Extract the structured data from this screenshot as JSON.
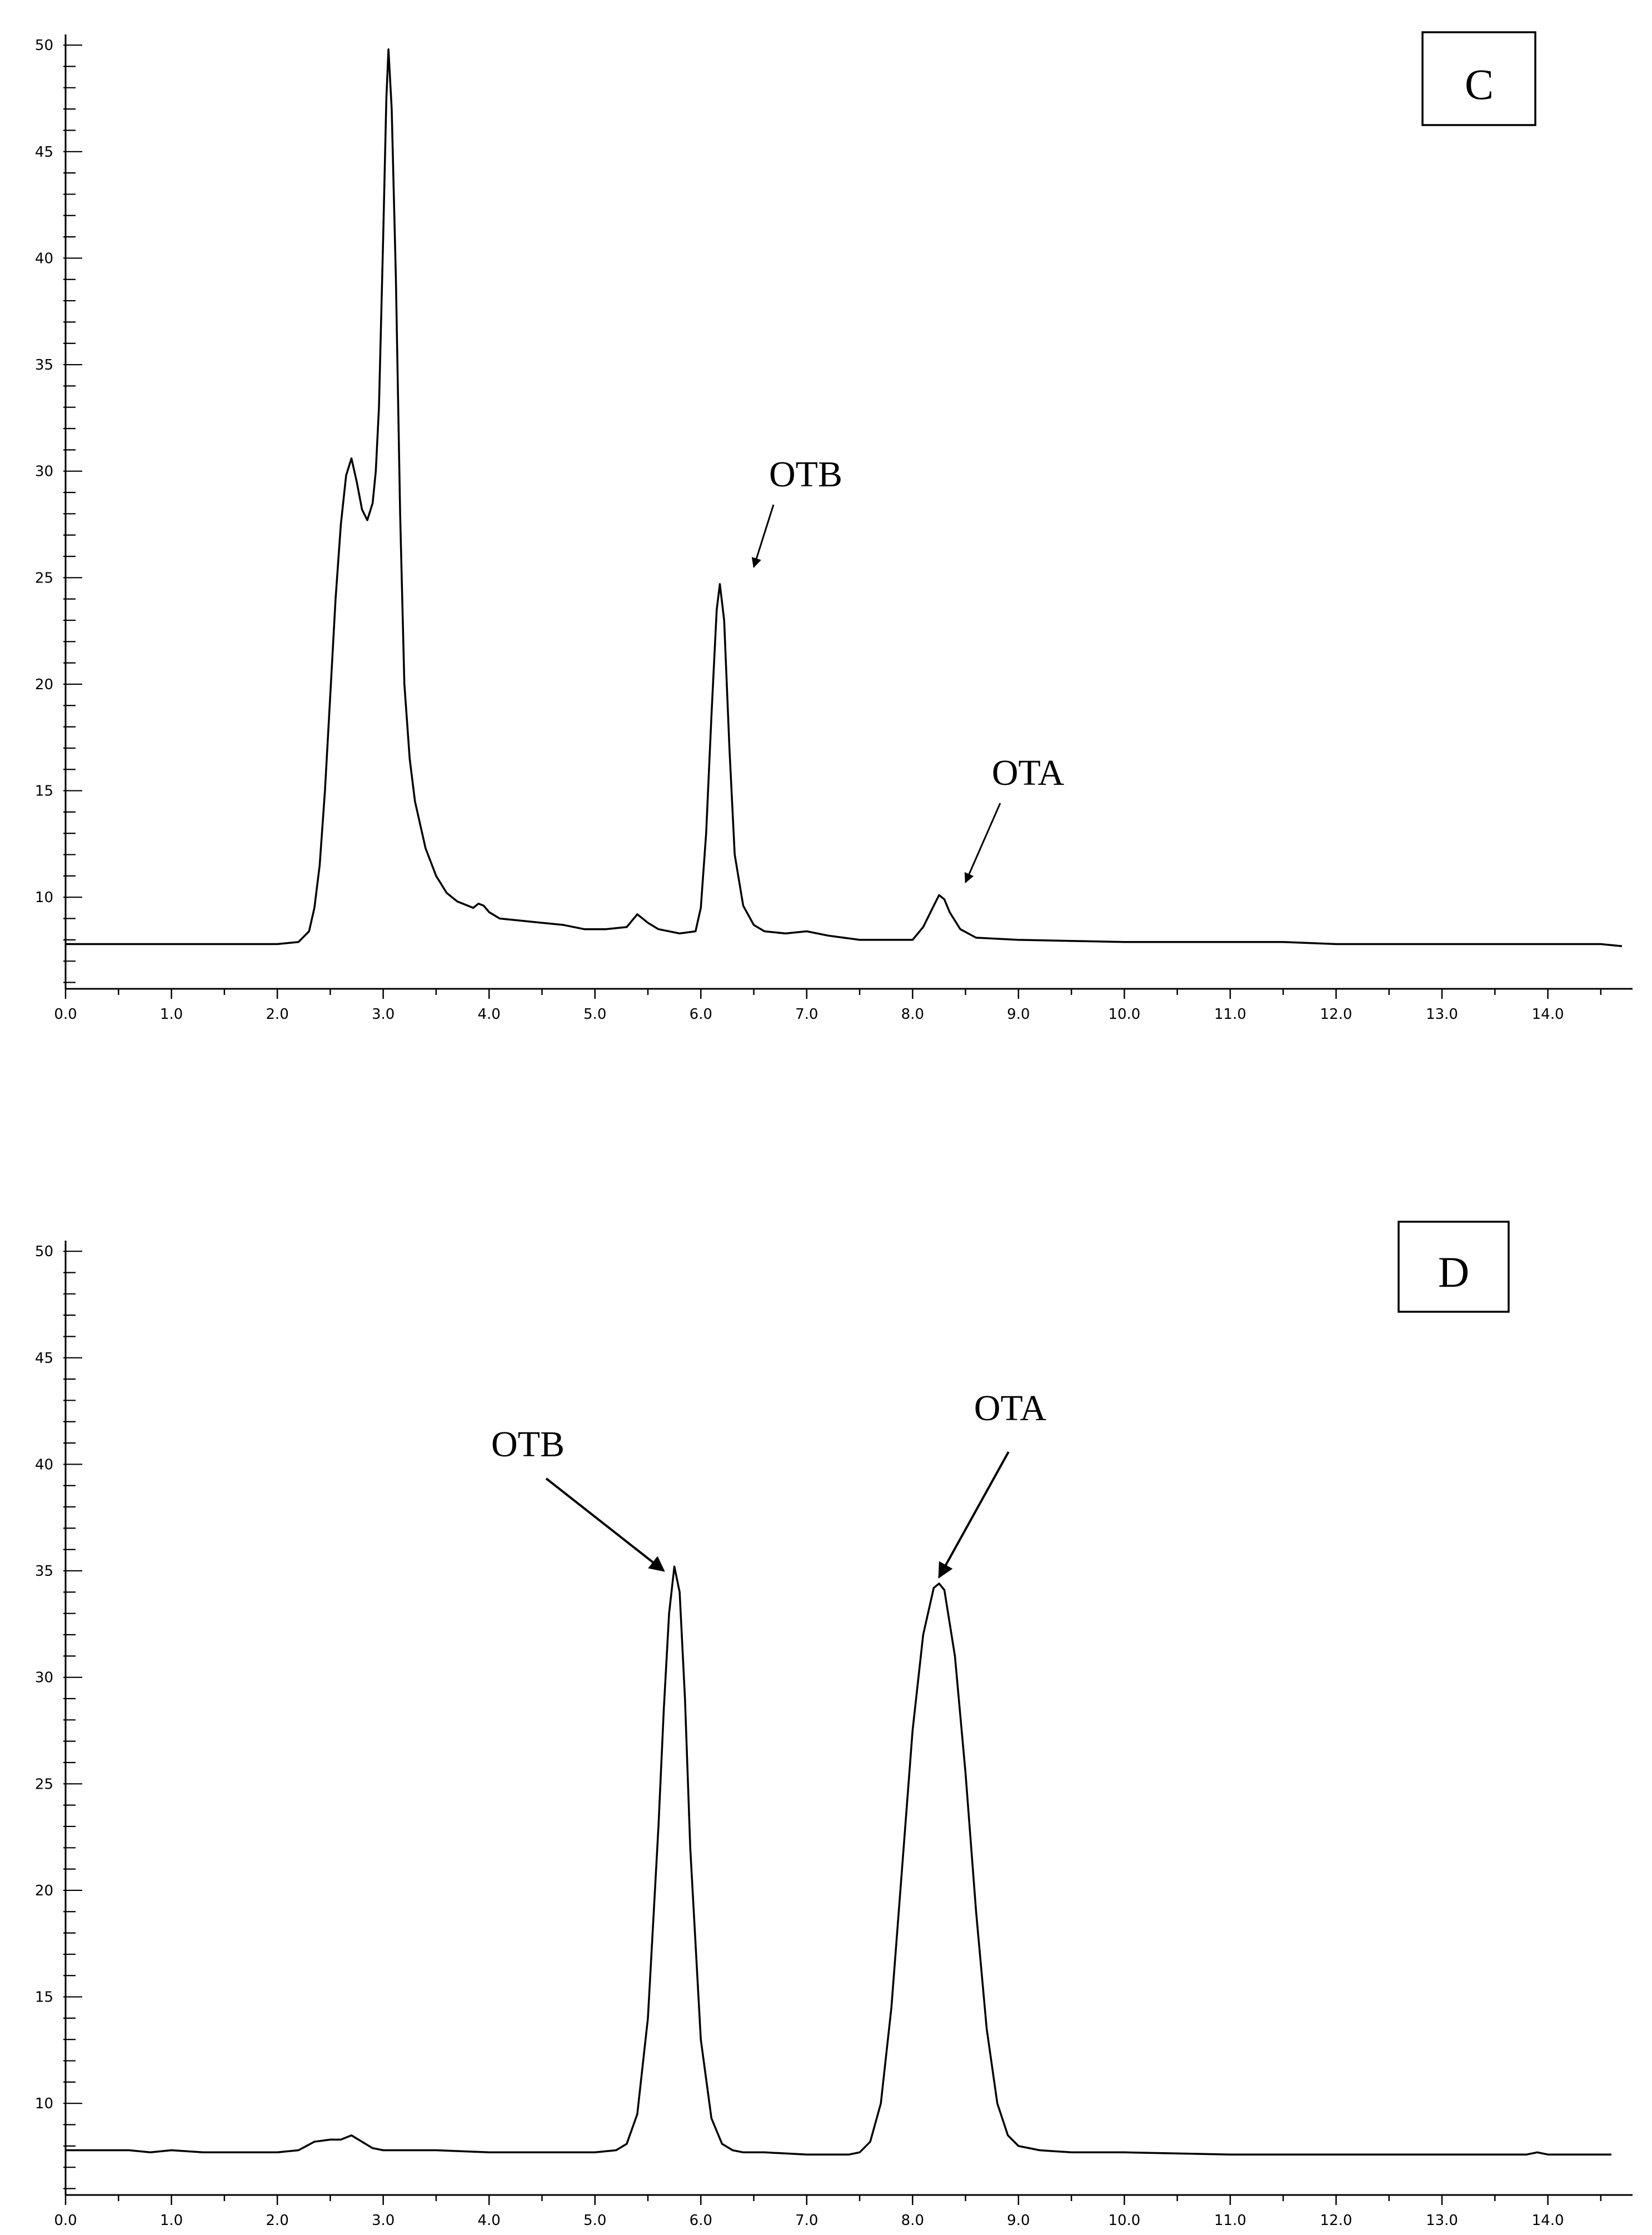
{
  "chart_data": [
    {
      "type": "line",
      "panel_label": "C",
      "xlim": [
        0,
        14.8
      ],
      "ylim": [
        5.7,
        50.5
      ],
      "x_ticks": [
        "0.0",
        "1.0",
        "2.0",
        "3.0",
        "4.0",
        "5.0",
        "6.0",
        "7.0",
        "8.0",
        "9.0",
        "10.0",
        "11.0",
        "12.0",
        "13.0",
        "14.0"
      ],
      "y_ticks": [
        "10",
        "15",
        "20",
        "25",
        "30",
        "35",
        "40",
        "45",
        "50"
      ],
      "grid": false,
      "series": [
        {
          "x": [
            0,
            2.0,
            2.2,
            2.3,
            2.35,
            2.4,
            2.45,
            2.5,
            2.55,
            2.6,
            2.65,
            2.7,
            2.75,
            2.8,
            2.85,
            2.9,
            2.93,
            2.96,
            3.0,
            3.03,
            3.05,
            3.08,
            3.12,
            3.16,
            3.2,
            3.25,
            3.3,
            3.4,
            3.5,
            3.6,
            3.7,
            3.8,
            3.85,
            3.9,
            3.95,
            4.0,
            4.1,
            4.3,
            4.5,
            4.7,
            4.9,
            5.1,
            5.3,
            5.35,
            5.4,
            5.45,
            5.5,
            5.6,
            5.8,
            5.95,
            6.0,
            6.05,
            6.1,
            6.15,
            6.18,
            6.22,
            6.27,
            6.32,
            6.4,
            6.5,
            6.6,
            6.8,
            7.0,
            7.2,
            7.5,
            8.0,
            8.1,
            8.2,
            8.25,
            8.3,
            8.35,
            8.45,
            8.6,
            9.0,
            10.0,
            11.5,
            12.0,
            13.0,
            14.0,
            14.5,
            14.7
          ],
          "y": [
            7.8,
            7.8,
            7.9,
            8.4,
            9.5,
            11.5,
            15.0,
            19.5,
            24.0,
            27.5,
            29.8,
            30.6,
            29.5,
            28.2,
            27.7,
            28.5,
            30.0,
            33.0,
            41.0,
            47.5,
            49.8,
            47.0,
            39.0,
            28.0,
            20.0,
            16.5,
            14.5,
            12.3,
            11.0,
            10.2,
            9.8,
            9.6,
            9.5,
            9.7,
            9.6,
            9.3,
            9.0,
            8.9,
            8.8,
            8.7,
            8.5,
            8.5,
            8.6,
            8.9,
            9.2,
            9.0,
            8.8,
            8.5,
            8.3,
            8.4,
            9.5,
            13.0,
            18.5,
            23.5,
            24.7,
            23.0,
            17.0,
            12.0,
            9.6,
            8.7,
            8.4,
            8.3,
            8.4,
            8.2,
            8.0,
            8.0,
            8.6,
            9.6,
            10.1,
            9.9,
            9.3,
            8.5,
            8.1,
            8.0,
            7.9,
            7.9,
            7.8,
            7.8,
            7.8,
            7.8,
            7.7
          ]
        }
      ],
      "annotations": [
        {
          "text": "OTB",
          "target": [
            6.5,
            25.5
          ]
        },
        {
          "text": "OTA",
          "target": [
            8.5,
            10.7
          ]
        }
      ]
    },
    {
      "type": "line",
      "panel_label": "D",
      "xlim": [
        0,
        14.8
      ],
      "ylim": [
        5.7,
        50.5
      ],
      "x_ticks": [
        "0.0",
        "1.0",
        "2.0",
        "3.0",
        "4.0",
        "5.0",
        "6.0",
        "7.0",
        "8.0",
        "9.0",
        "10.0",
        "11.0",
        "12.0",
        "13.0",
        "14.0"
      ],
      "y_ticks": [
        "10",
        "15",
        "20",
        "25",
        "30",
        "35",
        "40",
        "45",
        "50"
      ],
      "grid": false,
      "series": [
        {
          "x": [
            0,
            0.6,
            0.8,
            1.0,
            1.3,
            2.0,
            2.2,
            2.35,
            2.5,
            2.6,
            2.7,
            2.8,
            2.9,
            3.0,
            3.5,
            4.0,
            4.5,
            5.0,
            5.2,
            5.3,
            5.4,
            5.5,
            5.6,
            5.65,
            5.7,
            5.75,
            5.8,
            5.85,
            5.9,
            6.0,
            6.1,
            6.2,
            6.3,
            6.4,
            6.6,
            7.0,
            7.4,
            7.5,
            7.6,
            7.7,
            7.8,
            7.9,
            8.0,
            8.1,
            8.2,
            8.25,
            8.3,
            8.4,
            8.5,
            8.6,
            8.7,
            8.8,
            8.9,
            9.0,
            9.2,
            9.5,
            10.0,
            11.0,
            12.0,
            13.0,
            13.8,
            13.9,
            14.0,
            14.6
          ],
          "y": [
            7.8,
            7.8,
            7.7,
            7.8,
            7.7,
            7.7,
            7.8,
            8.2,
            8.3,
            8.3,
            8.5,
            8.2,
            7.9,
            7.8,
            7.8,
            7.7,
            7.7,
            7.7,
            7.8,
            8.1,
            9.5,
            14.0,
            23.0,
            28.5,
            33.0,
            35.2,
            34.0,
            29.0,
            22.0,
            13.0,
            9.3,
            8.1,
            7.8,
            7.7,
            7.7,
            7.6,
            7.6,
            7.7,
            8.2,
            10.0,
            14.5,
            21.0,
            27.5,
            32.0,
            34.2,
            34.4,
            34.1,
            31.0,
            25.5,
            19.0,
            13.5,
            10.0,
            8.5,
            8.0,
            7.8,
            7.7,
            7.7,
            7.6,
            7.6,
            7.6,
            7.6,
            7.7,
            7.6,
            7.6
          ]
        }
      ],
      "annotations": [
        {
          "text": "OTB",
          "target": [
            5.65,
            35.0
          ]
        },
        {
          "text": "OTA",
          "target": [
            8.25,
            34.7
          ]
        }
      ]
    }
  ]
}
